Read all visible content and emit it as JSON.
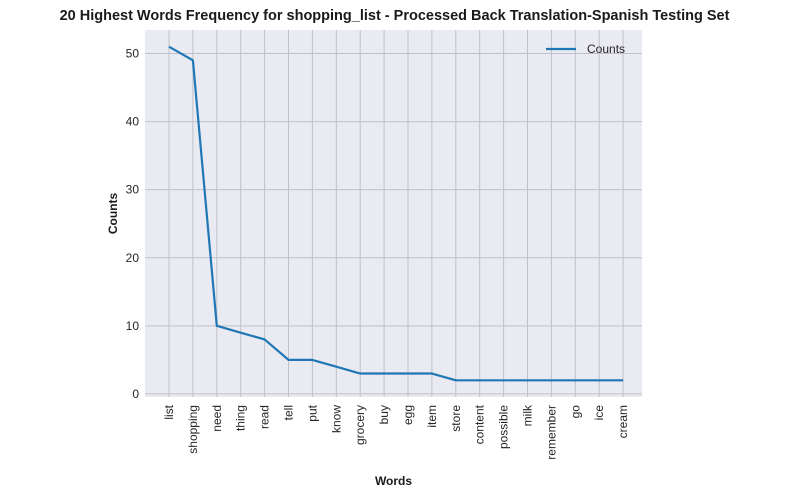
{
  "chart_data": {
    "type": "line",
    "title": "20 Highest Words Frequency for shopping_list - Processed Back Translation-Spanish Testing Set",
    "xlabel": "Words",
    "ylabel": "Counts",
    "categories": [
      "list",
      "shopping",
      "need",
      "thing",
      "read",
      "tell",
      "put",
      "know",
      "grocery",
      "buy",
      "egg",
      "item",
      "store",
      "content",
      "possible",
      "milk",
      "remember",
      "go",
      "ice",
      "cream"
    ],
    "series": [
      {
        "name": "Counts",
        "values": [
          51,
          49,
          10,
          9,
          8,
          5,
          5,
          4,
          3,
          3,
          3,
          3,
          2,
          2,
          2,
          2,
          2,
          2,
          2,
          2
        ],
        "color": "#1f77b4"
      }
    ],
    "yticks": [
      0,
      10,
      20,
      30,
      40,
      50
    ],
    "ylim": [
      -0.45,
      53.45
    ],
    "grid": true,
    "legend": "top-right",
    "background": "#eaeaf2"
  }
}
